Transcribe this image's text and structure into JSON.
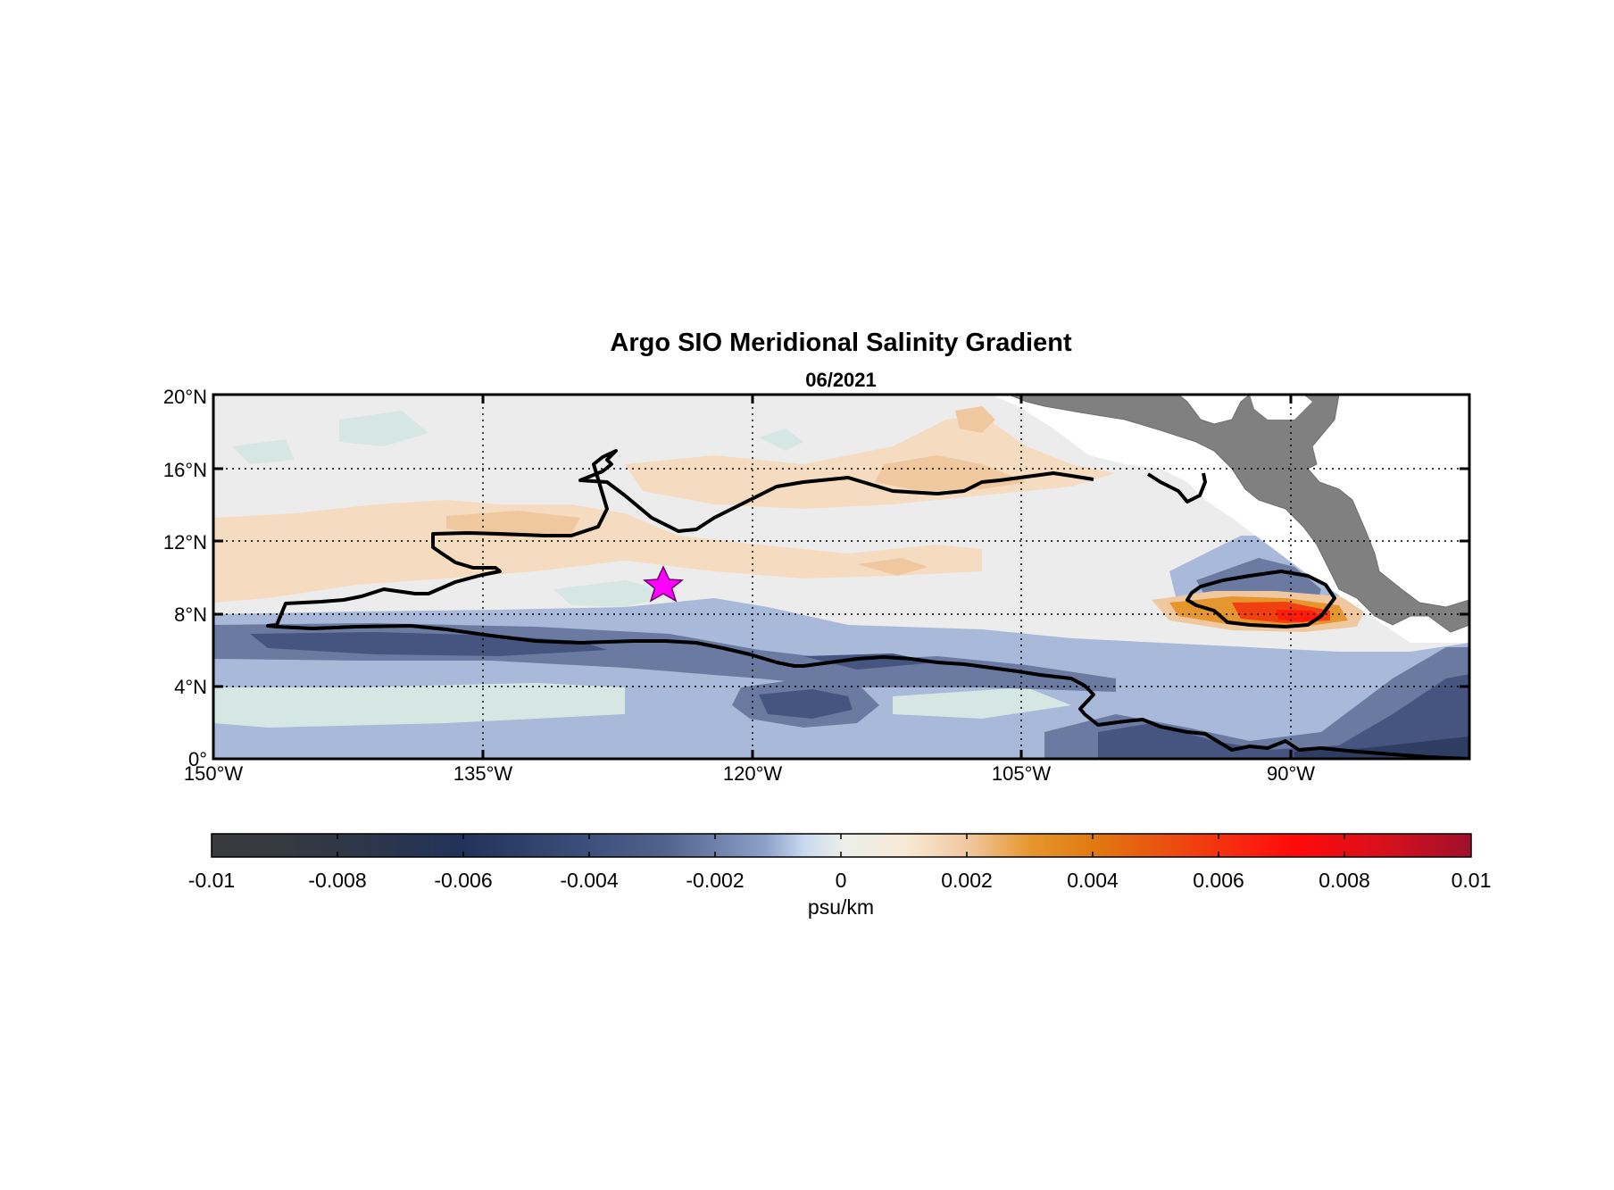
{
  "title": "Argo SIO Meridional Salinity Gradient",
  "subtitle": "06/2021",
  "map": {
    "lon_range": [
      -150,
      -80
    ],
    "lat_range": [
      0,
      20
    ],
    "lat_ticks": [
      "0°",
      "4°N",
      "8°N",
      "12°N",
      "16°N",
      "20°N"
    ],
    "lon_ticks": [
      "150°W",
      "135°W",
      "120°W",
      "105°W",
      "90°W"
    ],
    "grid": "dotted",
    "land_color": "#808080",
    "marker": {
      "symbol": "star",
      "color": "#ff00ff",
      "lon": -125,
      "lat": 10
    }
  },
  "colorbar": {
    "label": "psu/km",
    "ticks": [
      "-0.01",
      "-0.008",
      "-0.006",
      "-0.004",
      "-0.002",
      "0",
      "0.002",
      "0.004",
      "0.006",
      "0.008",
      "0.01"
    ],
    "range": [
      -0.01,
      0.01
    ],
    "colors": {
      "neg_extreme": "#3a3a3d",
      "neg_dark": "#22325a",
      "neg_mid": "#51628c",
      "neg_light": "#a8b9d9",
      "neutral": "#ececec",
      "pos_light": "#f5dcc0",
      "pos_mid": "#e07a10",
      "pos_high": "#ff0a0a",
      "pos_extreme": "#a0102c"
    }
  }
}
